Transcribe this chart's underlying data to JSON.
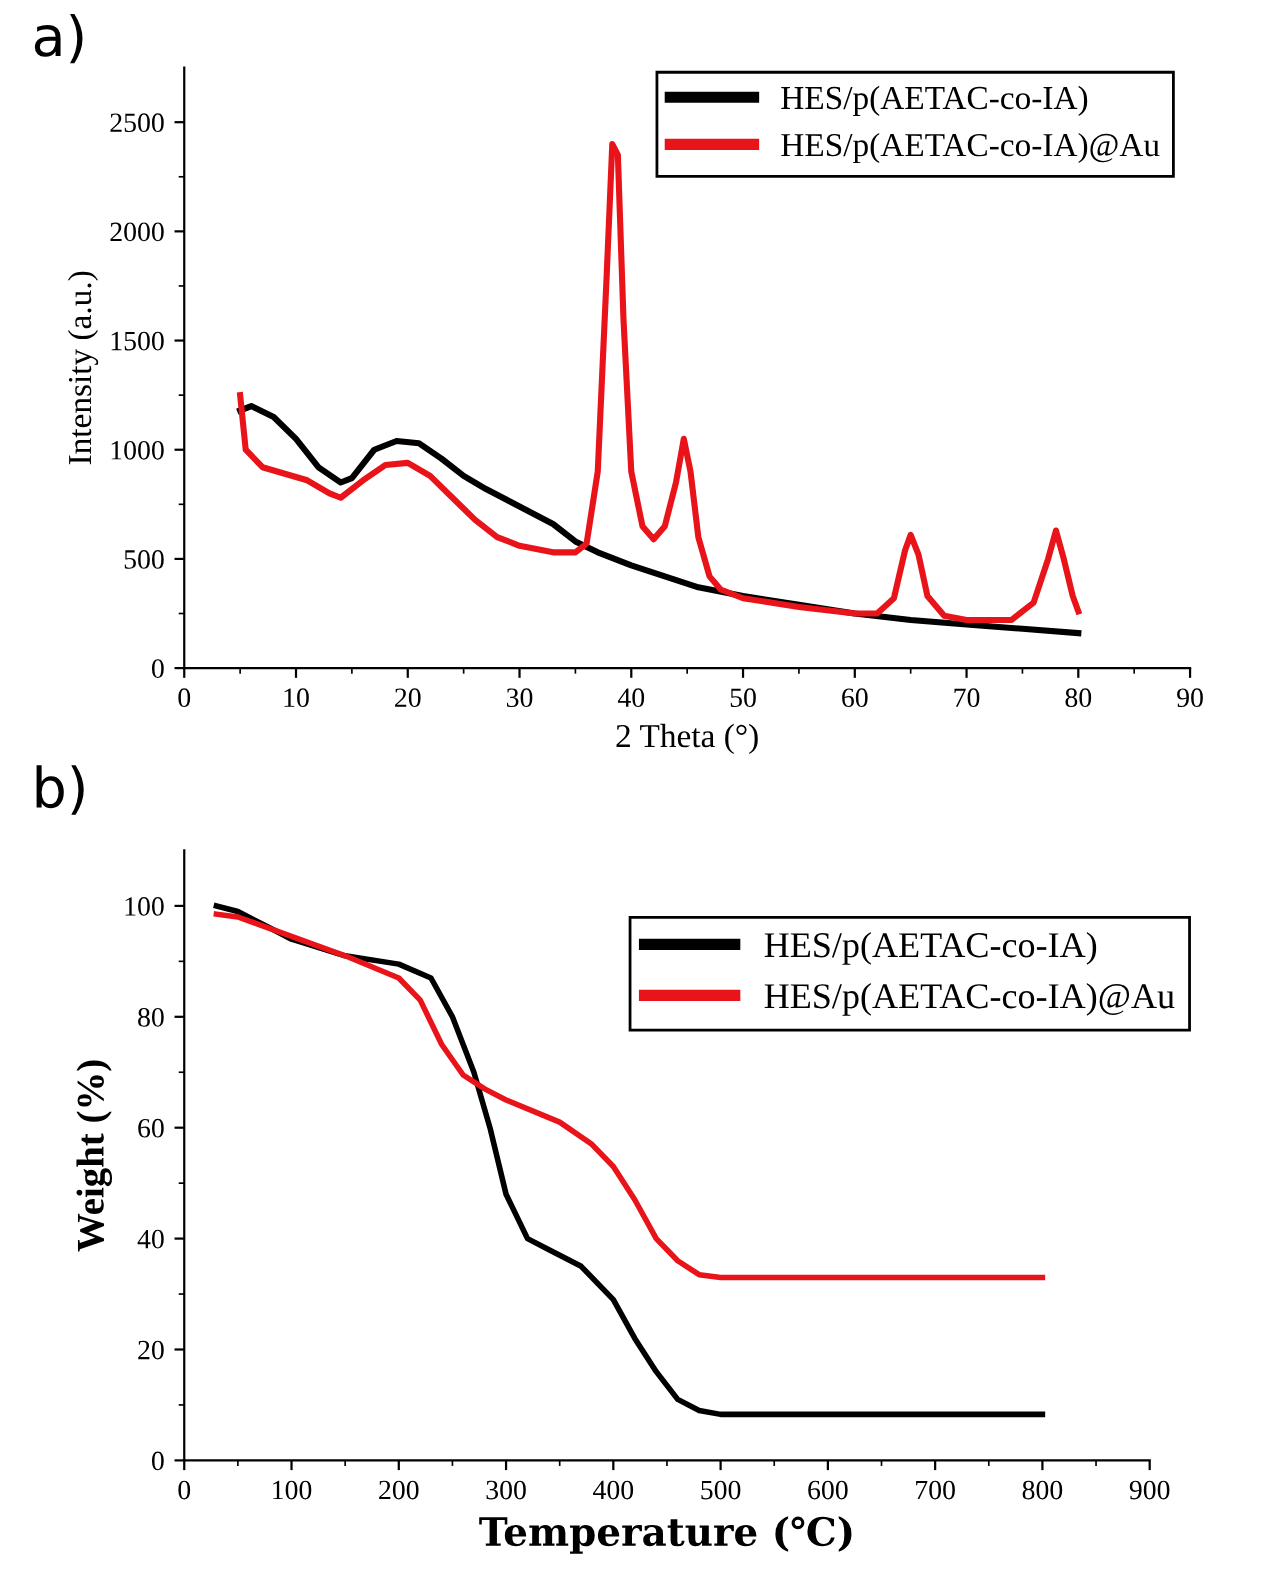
{
  "chart_data": [
    {
      "type": "line",
      "title": "a)",
      "xlabel": "2 Theta (°)",
      "ylabel": "Intensity (a.u.)",
      "xlim": [
        0,
        90
      ],
      "ylim": [
        0,
        2750
      ],
      "xticks": [
        0,
        10,
        20,
        30,
        40,
        50,
        60,
        70,
        80,
        90
      ],
      "yticks": [
        0,
        500,
        1000,
        1500,
        2000,
        2500
      ],
      "grid": false,
      "legend": "top right",
      "marker": "none",
      "line_style": "solid",
      "series": [
        {
          "name": "HES/p(AETAC-co-IA)",
          "color": "#000000",
          "x": [
            5,
            6,
            8,
            10,
            12,
            14,
            15,
            17,
            19,
            21,
            23,
            25,
            27,
            30,
            33,
            35,
            37,
            40,
            43,
            46,
            50,
            55,
            60,
            65,
            70,
            75,
            80
          ],
          "values": [
            1180,
            1200,
            1150,
            1050,
            920,
            850,
            870,
            1000,
            1040,
            1030,
            960,
            880,
            820,
            740,
            660,
            580,
            530,
            470,
            420,
            370,
            330,
            290,
            250,
            220,
            200,
            180,
            160
          ]
        },
        {
          "name": "HES/p(AETAC-co-IA)@Au",
          "color": "#e8141a",
          "x": [
            5,
            5.5,
            7,
            9,
            11,
            13,
            14,
            16,
            18,
            20,
            22,
            24,
            26,
            28,
            30,
            33,
            35,
            36,
            37,
            37.8,
            38.3,
            38.8,
            39.3,
            40,
            41,
            42,
            43,
            44,
            44.7,
            45.3,
            46,
            47,
            48,
            50,
            55,
            60,
            62,
            63.5,
            64.5,
            65,
            65.7,
            66.5,
            68,
            70,
            74,
            76,
            77.3,
            78,
            78.7,
            79.5,
            80
          ],
          "values": [
            1250,
            1000,
            920,
            890,
            860,
            800,
            780,
            860,
            930,
            940,
            880,
            780,
            680,
            600,
            560,
            530,
            530,
            570,
            900,
            1800,
            2400,
            2350,
            1600,
            900,
            650,
            590,
            650,
            850,
            1050,
            900,
            600,
            420,
            360,
            320,
            280,
            250,
            250,
            320,
            540,
            610,
            520,
            330,
            240,
            220,
            220,
            300,
            500,
            630,
            500,
            330,
            260
          ]
        }
      ]
    },
    {
      "type": "line",
      "title": "b)",
      "xlabel": "Temperature (℃)",
      "ylabel": "Weight (%)",
      "xlim": [
        0,
        900
      ],
      "ylim": [
        0,
        110
      ],
      "xticks": [
        0,
        100,
        200,
        300,
        400,
        500,
        600,
        700,
        800,
        900
      ],
      "yticks": [
        0,
        20,
        40,
        60,
        80,
        100
      ],
      "grid": false,
      "legend": "top right",
      "marker": "none",
      "line_style": "solid",
      "series": [
        {
          "name": "HES/p(AETAC-co-IA)",
          "color": "#000000",
          "x": [
            30,
            50,
            80,
            100,
            150,
            200,
            230,
            250,
            270,
            285,
            300,
            320,
            340,
            370,
            400,
            420,
            440,
            460,
            480,
            500,
            800
          ],
          "values": [
            100,
            99,
            96,
            94,
            91,
            89.5,
            87,
            80,
            70,
            60,
            48,
            40,
            38,
            35,
            29,
            22,
            16,
            11,
            9,
            8.3,
            8.3
          ]
        },
        {
          "name": "HES/p(AETAC-co-IA)@Au",
          "color": "#e8141a",
          "x": [
            30,
            50,
            100,
            150,
            200,
            220,
            240,
            260,
            280,
            300,
            350,
            380,
            400,
            420,
            440,
            460,
            480,
            500,
            800
          ],
          "values": [
            98.5,
            98,
            94.5,
            91,
            87,
            83,
            75,
            69.5,
            67,
            65,
            61,
            57,
            53,
            47,
            40,
            36,
            33.5,
            33,
            33
          ]
        }
      ]
    }
  ]
}
